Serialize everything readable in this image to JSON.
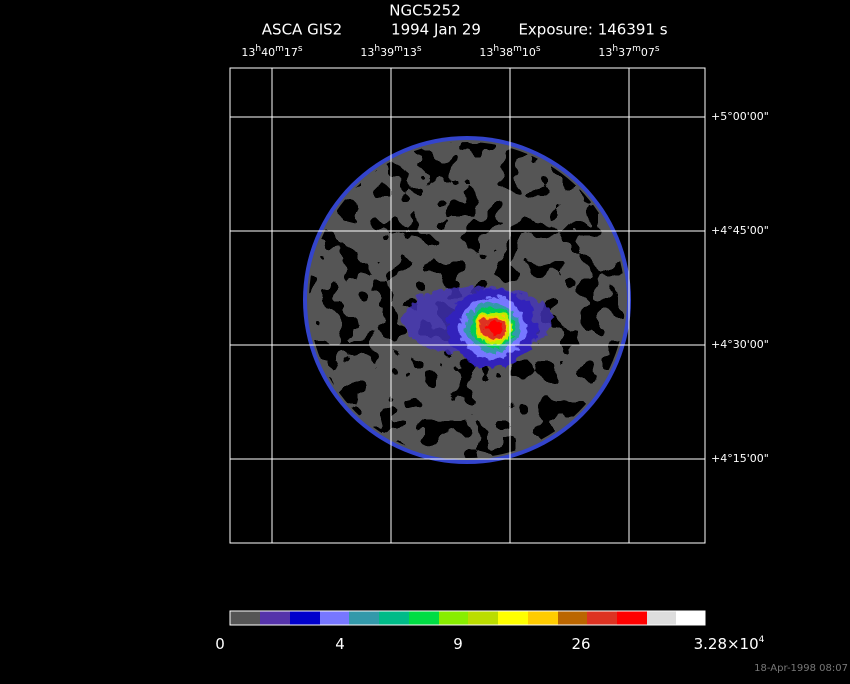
{
  "title": "NGC5252",
  "subtitle": {
    "instrument": "ASCA GIS2",
    "date": "1994 Jan 29",
    "exposure": "Exposure: 146391 s"
  },
  "ra_labels": [
    [
      "13",
      "h",
      "40",
      "m",
      "17",
      "s"
    ],
    [
      "13",
      "h",
      "39",
      "m",
      "13",
      "s"
    ],
    [
      "13",
      "h",
      "38",
      "m",
      "10",
      "s"
    ],
    [
      "13",
      "h",
      "37",
      "m",
      "07",
      "s"
    ]
  ],
  "dec_labels": [
    "+5°00'00\"",
    "+4°45'00\"",
    "+4°30'00\"",
    "+4°15'00\""
  ],
  "colorbar_labels": [
    [
      "0"
    ],
    [
      "4"
    ],
    [
      "9"
    ],
    [
      "26"
    ],
    [
      "3.28×10",
      "4"
    ]
  ],
  "timestamp": "18-Apr-1998 08:07"
}
